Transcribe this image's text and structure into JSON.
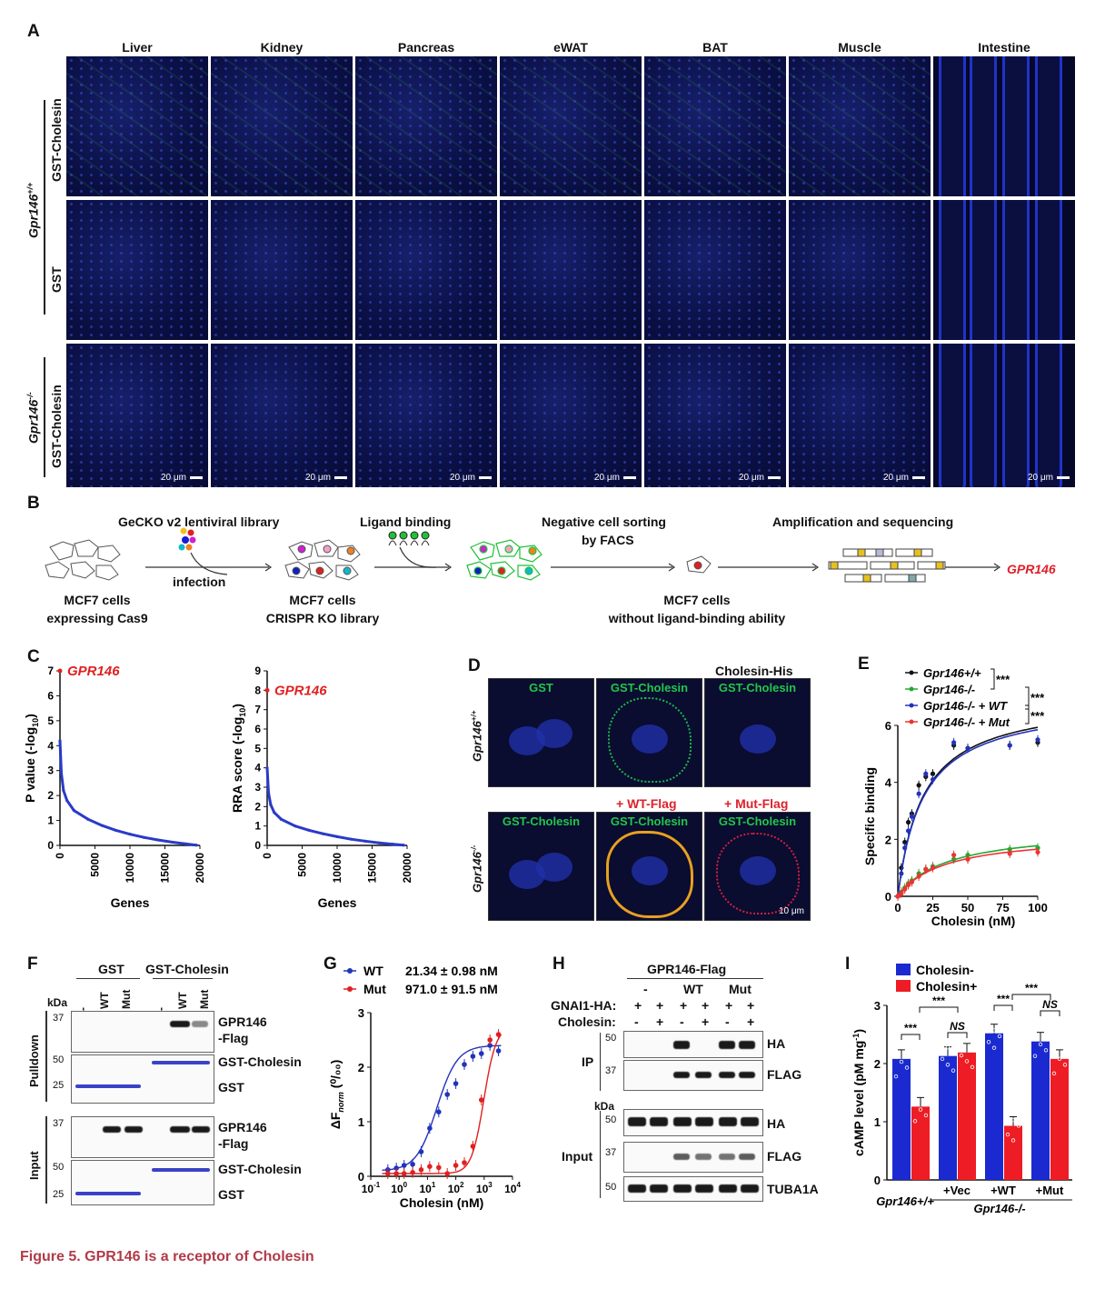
{
  "panelA": {
    "label": "A",
    "columns": [
      "Liver",
      "Kidney",
      "Pancreas",
      "eWAT",
      "BAT",
      "Muscle",
      "Intestine"
    ],
    "genotype_wt": "Gpr146",
    "genotype_wt_sup": "+/+",
    "genotype_ko": "Gpr146",
    "genotype_ko_sup": "-/-",
    "rows": [
      "GST-Cholesin",
      "GST",
      "GST-Cholesin"
    ],
    "scale": "20 μm"
  },
  "panelB": {
    "label": "B",
    "step_library": "GeCKO v2 lentiviral library",
    "step_binding": "Ligand binding",
    "step_sorting_1": "Negative cell sorting",
    "step_sorting_2": "by FACS",
    "step_amplification": "Amplification and sequencing",
    "infection": "infection",
    "cells1_line1": "MCF7 cells",
    "cells1_line2": "expressing Cas9",
    "cells2_line1": "MCF7 cells",
    "cells2_line2": "CRISPR KO library",
    "cells3_line1": "MCF7 cells",
    "cells3_line2": "without ligand-binding ability",
    "result": "GPR146"
  },
  "panelC": {
    "label": "C",
    "gene_label": "GPR146",
    "xlabel": "Genes",
    "ylabel_left": "P value (-log",
    "ylabel_right": "RRA score (-log",
    "ylabel_sub": "10",
    "xticks": [
      "0",
      "5000",
      "10000",
      "15000",
      "20000"
    ]
  },
  "panelD": {
    "label": "D",
    "top_labels": [
      "GST",
      "GST-Cholesin",
      "GST-Cholesin"
    ],
    "extra_top": "Cholesin-His",
    "bottom_labels": [
      "GST-Cholesin",
      "GST-Cholesin",
      "GST-Cholesin"
    ],
    "extra_wt": "+ WT-Flag",
    "extra_mut": "+ Mut-Flag",
    "genotype_wt": "Gpr146",
    "genotype_wt_sup": "+/+",
    "genotype_ko": "Gpr146",
    "genotype_ko_sup": "-/-",
    "scale": "10 μm"
  },
  "panelE": {
    "label": "E",
    "legend": [
      "Gpr146+/+",
      "Gpr146-/-",
      "Gpr146-/- + WT",
      "Gpr146-/- + Mut"
    ],
    "sig": [
      "***",
      "***",
      "***"
    ],
    "xlabel": "Cholesin (nM)",
    "ylabel": "Specific binding"
  },
  "panelF": {
    "label": "F",
    "group1": "GST",
    "group2": "GST-Cholesin",
    "lanes": [
      "-",
      "WT",
      "Mut",
      "-",
      "WT",
      "Mut"
    ],
    "kda": "kDa",
    "pulldown": "Pulldown",
    "input": "Input",
    "markers_pd1": "37",
    "markers_pd2": [
      "50",
      "25"
    ],
    "markers_in1": "37",
    "markers_in2": [
      "50",
      "25"
    ],
    "band1": "GPR146",
    "band1b": "-Flag",
    "band2": "GST-Cholesin",
    "band3": "GST"
  },
  "panelG": {
    "label": "G",
    "legend": [
      {
        "name": "WT",
        "value": "21.34 ± 0.98 nM"
      },
      {
        "name": "Mut",
        "value": "971.0 ± 91.5 nM"
      }
    ],
    "xlabel": "Cholesin (nM)",
    "ylabel": "ΔF",
    "ylabel_sub": "norm",
    "ylabel_unit": " (⁰/₀₀)"
  },
  "panelH": {
    "label": "H",
    "title": "GPR146-Flag",
    "groups": [
      "-",
      "WT",
      "Mut"
    ],
    "row1": "GNAI1-HA:",
    "row2": "Cholesin:",
    "row1_values": [
      "+",
      "+",
      "+",
      "+",
      "+",
      "+"
    ],
    "row2_values": [
      "-",
      "+",
      "-",
      "+",
      "-",
      "+"
    ],
    "ip": "IP",
    "input": "Input",
    "kda": "kDa",
    "bands": [
      "HA",
      "FLAG",
      "HA",
      "FLAG",
      "TUBA1A"
    ],
    "markers": [
      "50",
      "37",
      "50",
      "37",
      "50"
    ]
  },
  "panelI": {
    "label": "I",
    "legend": [
      "Cholesin-",
      "Cholesin+"
    ],
    "ylabel": "cAMP level (pM mg",
    "ylabel_sup": "-1",
    "xgroups": [
      "Gpr146+/+",
      "+Vec",
      "+WT",
      "+Mut"
    ],
    "xsub": "Gpr146-/-",
    "sig": [
      "***",
      "***",
      "NS",
      "***",
      "***",
      "NS"
    ]
  },
  "caption": "Figure 5.  GPR146 is a receptor of Cholesin",
  "chart_data": [
    {
      "type": "line",
      "title": "",
      "xlabel": "Genes",
      "ylabel": "P value (-log10)",
      "xlim": [
        0,
        20000
      ],
      "ylim": [
        0,
        7
      ],
      "annotation": {
        "label": "GPR146",
        "x": 1,
        "y": 7.0
      },
      "x": [
        1,
        200,
        500,
        1000,
        2000,
        4000,
        6000,
        8000,
        10000,
        12000,
        14000,
        16000,
        18000,
        19500
      ],
      "values": [
        4.2,
        2.9,
        2.2,
        1.8,
        1.4,
        1.05,
        0.8,
        0.6,
        0.45,
        0.32,
        0.22,
        0.13,
        0.06,
        0.01
      ]
    },
    {
      "type": "line",
      "title": "",
      "xlabel": "Genes",
      "ylabel": "RRA score (-log10)",
      "xlim": [
        0,
        20000
      ],
      "ylim": [
        0,
        9
      ],
      "annotation": {
        "label": "GPR146",
        "x": 1,
        "y": 8.0
      },
      "x": [
        1,
        200,
        500,
        1000,
        2000,
        4000,
        6000,
        8000,
        10000,
        12000,
        14000,
        16000,
        18000,
        19500
      ],
      "values": [
        4.0,
        2.7,
        2.1,
        1.7,
        1.35,
        1.0,
        0.78,
        0.6,
        0.45,
        0.32,
        0.22,
        0.13,
        0.06,
        0.01
      ]
    },
    {
      "type": "line",
      "xlabel": "Cholesin (nM)",
      "ylabel": "Specific binding",
      "xlim": [
        0,
        100
      ],
      "ylim": [
        0,
        6
      ],
      "x": [
        0,
        2.5,
        5,
        7.5,
        10,
        15,
        20,
        25,
        40,
        50,
        80,
        100
      ],
      "series": [
        {
          "name": "Gpr146+/+",
          "color": "#111111",
          "values": [
            0,
            1.0,
            1.9,
            2.6,
            2.9,
            3.9,
            4.2,
            4.3,
            5.3,
            5.2,
            5.3,
            5.4
          ]
        },
        {
          "name": "Gpr146-/-",
          "color": "#22aa33",
          "values": [
            0,
            0.15,
            0.3,
            0.45,
            0.55,
            0.8,
            0.95,
            1.05,
            1.3,
            1.45,
            1.65,
            1.7
          ]
        },
        {
          "name": "Gpr146-/- + WT",
          "color": "#2233bb",
          "values": [
            0,
            0.8,
            1.7,
            2.3,
            2.8,
            3.6,
            4.3,
            4.1,
            5.4,
            5.2,
            5.3,
            5.5
          ]
        },
        {
          "name": "Gpr146-/- + Mut",
          "color": "#ee3333",
          "values": [
            0,
            0.1,
            0.25,
            0.4,
            0.5,
            0.7,
            0.95,
            1.0,
            1.45,
            1.3,
            1.5,
            1.55
          ]
        }
      ]
    },
    {
      "type": "scatter",
      "xlabel": "Cholesin (nM)",
      "ylabel": "ΔFnorm (‰)",
      "xlim": [
        0.1,
        10000
      ],
      "ylim": [
        0,
        3
      ],
      "x_scale": "log",
      "series": [
        {
          "name": "WT",
          "color": "#2233bb",
          "x": [
            0.4,
            0.8,
            1.5,
            3,
            6,
            12,
            25,
            50,
            100,
            200,
            400,
            800,
            1600,
            3200
          ],
          "values": [
            0.12,
            0.15,
            0.2,
            0.22,
            0.45,
            0.88,
            1.18,
            1.5,
            1.7,
            2.05,
            2.2,
            2.25,
            2.4,
            2.3
          ]
        },
        {
          "name": "Mut",
          "color": "#e02020",
          "x": [
            0.4,
            0.8,
            1.5,
            3,
            6,
            12,
            25,
            50,
            100,
            200,
            400,
            800,
            1600,
            3200
          ],
          "values": [
            0.05,
            0.05,
            0.05,
            0.07,
            0.12,
            0.18,
            0.16,
            0.05,
            0.2,
            0.25,
            0.55,
            1.4,
            2.5,
            2.6
          ]
        }
      ]
    },
    {
      "type": "bar",
      "ylabel": "cAMP level (pM mg-1)",
      "ylim": [
        0,
        3
      ],
      "categories": [
        "Gpr146+/+",
        "+Vec",
        "+WT",
        "+Mut"
      ],
      "series": [
        {
          "name": "Cholesin-",
          "color": "#1a2ad0",
          "values": [
            2.08,
            2.13,
            2.52,
            2.38
          ]
        },
        {
          "name": "Cholesin+",
          "color": "#ee1c24",
          "values": [
            1.26,
            2.19,
            0.93,
            2.08
          ]
        }
      ]
    }
  ]
}
